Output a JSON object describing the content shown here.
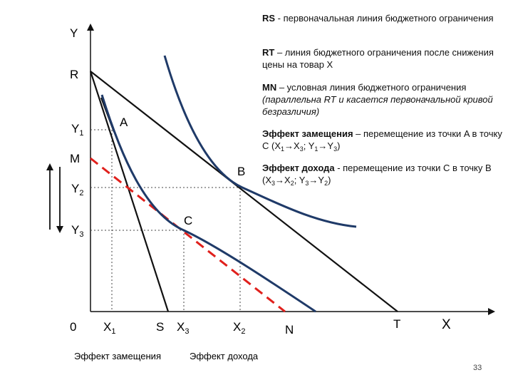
{
  "diagram": {
    "axis_labels": {
      "y": "Y",
      "x": "X",
      "origin": "0"
    },
    "y_ticks": {
      "r": "R",
      "y1_main": "Y",
      "y1_sub": "1",
      "m": "M",
      "y2_main": "Y",
      "y2_sub": "2",
      "y3_main": "Y",
      "y3_sub": "3"
    },
    "x_ticks": {
      "x1_main": "X",
      "x1_sub": "1",
      "s": "S",
      "x3_main": "X",
      "x3_sub": "3",
      "x2_main": "X",
      "x2_sub": "2",
      "n": "N",
      "t": "T"
    },
    "points": {
      "a": "A",
      "b": "B",
      "c": "C"
    },
    "bottom_labels": {
      "substitution": "Эффект замещения",
      "income": "Эффект дохода"
    },
    "colors": {
      "budget_line": "#111111",
      "indifference_curve": "#1f3a68",
      "mn_line": "#e0201c",
      "guide": "#444444"
    }
  },
  "notes": {
    "rs_term": "RS",
    "rs_text": " - первоначальная линия бюджетного ограничения",
    "rt_term": "RT",
    "rt_text": " – линия бюджетного ограничения после снижения цены на товар X",
    "mn_term": "MN",
    "mn_text": " – условная линия бюджетного ограничения ",
    "mn_italic": "(параллельна RT и касается первоначальной кривой безразличия)",
    "sub_term": "Эффект замещения",
    "sub_text_1": " – перемещение из точки A в точку C (X",
    "sub_s1": "1",
    "sub_text_2": "→X",
    "sub_s2": "3",
    "sub_text_3": "; Y",
    "sub_s3": "1",
    "sub_text_4": "→Y",
    "sub_s4": "3",
    "sub_text_5": ")",
    "inc_term": "Эффект дохода",
    "inc_text_1": " - перемещение из точки C в точку B (X",
    "inc_s1": "3",
    "inc_text_2": "→X",
    "inc_s2": "2",
    "inc_text_3": "; Y",
    "inc_s3": "3",
    "inc_text_4": "→Y",
    "inc_s4": "2",
    "inc_text_5": ")"
  },
  "page_number": "33"
}
